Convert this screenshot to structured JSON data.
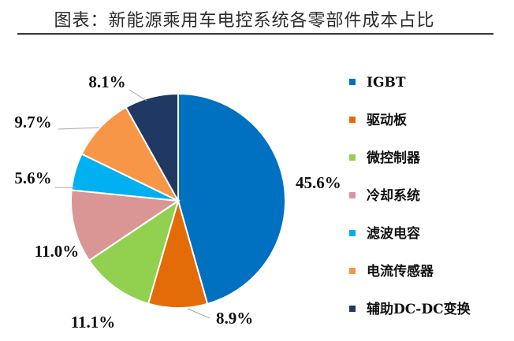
{
  "title": "图表：新能源乘用车电控系统各零部件成本占比",
  "chart_data": {
    "type": "pie",
    "start_angle_deg": 0,
    "direction": "clockwise",
    "legend_position": "right",
    "slices": [
      {
        "name": "IGBT",
        "value": 45.6,
        "label": "45.6%",
        "color": "#0070C0"
      },
      {
        "name": "驱动板",
        "value": 8.9,
        "label": "8.9%",
        "color": "#E36C09"
      },
      {
        "name": "微控制器",
        "value": 11.1,
        "label": "11.1%",
        "color": "#92D050"
      },
      {
        "name": "冷却系统",
        "value": 11.0,
        "label": "11.0%",
        "color": "#D99694"
      },
      {
        "name": "滤波电容",
        "value": 5.6,
        "label": "5.6%",
        "color": "#00B0F0"
      },
      {
        "name": "电流传感器",
        "value": 9.7,
        "label": "9.7%",
        "color": "#F79646"
      },
      {
        "name": "辅助DC-DC变换",
        "value": 8.1,
        "label": "8.1%",
        "color": "#1F3864"
      }
    ]
  }
}
